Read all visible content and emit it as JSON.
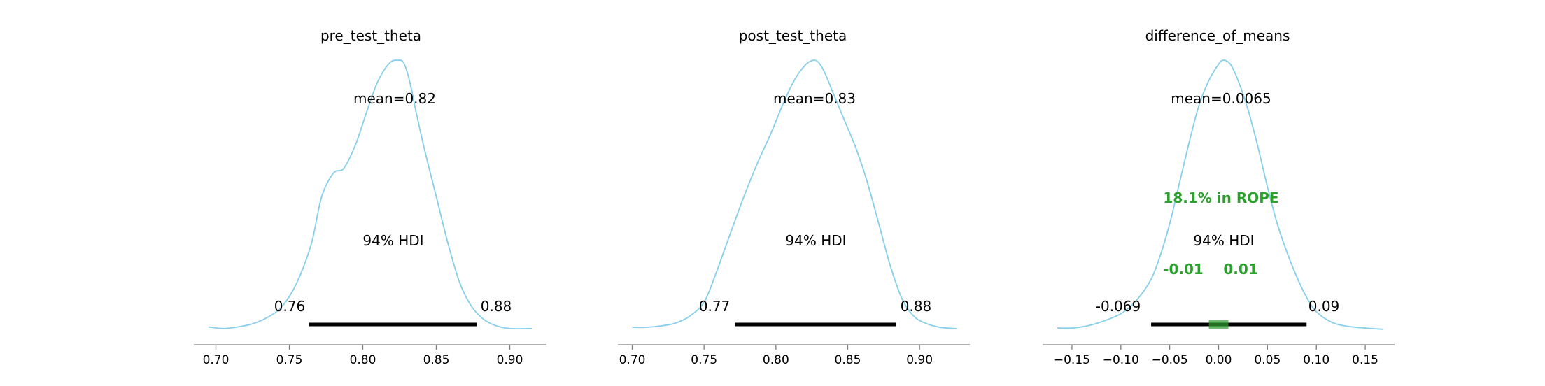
{
  "chart_data": [
    {
      "type": "line",
      "title": "pre_test_theta",
      "xlim": [
        0.685,
        0.925
      ],
      "xticks": [
        0.7,
        0.75,
        0.8,
        0.85,
        0.9
      ],
      "xtick_labels": [
        "0.70",
        "0.75",
        "0.80",
        "0.85",
        "0.90"
      ],
      "density": {
        "x": [
          0.695,
          0.705,
          0.715,
          0.725,
          0.735,
          0.745,
          0.755,
          0.765,
          0.772,
          0.78,
          0.787,
          0.795,
          0.803,
          0.81,
          0.818,
          0.824,
          0.828,
          0.832,
          0.836,
          0.842,
          0.85,
          0.858,
          0.866,
          0.874,
          0.882,
          0.89,
          0.9,
          0.915
        ],
        "y": [
          0.02,
          0.01,
          0.02,
          0.04,
          0.08,
          0.15,
          0.3,
          0.55,
          0.85,
          1.0,
          1.03,
          1.18,
          1.4,
          1.58,
          1.7,
          1.72,
          1.7,
          1.58,
          1.4,
          1.15,
          0.85,
          0.55,
          0.3,
          0.15,
          0.07,
          0.03,
          0.01,
          0.01
        ]
      },
      "mean_label": "mean=0.82",
      "mean_value": 0.82,
      "hdi_label": "94% HDI",
      "hdi": [
        0.76,
        0.88
      ],
      "hdi_x": [
        0.7635,
        0.8775
      ],
      "hdi_low_label": "0.76",
      "hdi_high_label": "0.88"
    },
    {
      "type": "line",
      "title": "post_test_theta",
      "xlim": [
        0.69,
        0.935
      ],
      "xticks": [
        0.7,
        0.75,
        0.8,
        0.85,
        0.9
      ],
      "xtick_labels": [
        "0.70",
        "0.75",
        "0.80",
        "0.85",
        "0.90"
      ],
      "density": {
        "x": [
          0.7,
          0.71,
          0.72,
          0.73,
          0.74,
          0.75,
          0.758,
          0.765,
          0.772,
          0.78,
          0.788,
          0.796,
          0.804,
          0.812,
          0.82,
          0.826,
          0.83,
          0.834,
          0.84,
          0.848,
          0.856,
          0.864,
          0.872,
          0.88,
          0.888,
          0.896,
          0.904,
          0.914,
          0.926
        ],
        "y": [
          0.02,
          0.02,
          0.03,
          0.05,
          0.1,
          0.2,
          0.4,
          0.6,
          0.8,
          1.02,
          1.22,
          1.4,
          1.6,
          1.78,
          1.9,
          1.94,
          1.92,
          1.85,
          1.7,
          1.5,
          1.3,
          1.05,
          0.75,
          0.45,
          0.22,
          0.1,
          0.05,
          0.02,
          0.01
        ]
      },
      "mean_label": "mean=0.83",
      "mean_value": 0.83,
      "hdi_label": "94% HDI",
      "hdi": [
        0.77,
        0.88
      ],
      "hdi_x": [
        0.7715,
        0.8835
      ],
      "hdi_low_label": "0.77",
      "hdi_high_label": "0.88"
    },
    {
      "type": "line",
      "title": "difference_of_means",
      "xlim": [
        -0.18,
        0.18
      ],
      "xticks": [
        -0.15,
        -0.1,
        -0.05,
        0.0,
        0.05,
        0.1,
        0.15
      ],
      "xtick_labels": [
        "−0.15",
        "−0.10",
        "−0.05",
        "0.00",
        "0.05",
        "0.10",
        "0.15"
      ],
      "density": {
        "x": [
          -0.165,
          -0.15,
          -0.135,
          -0.12,
          -0.1,
          -0.085,
          -0.07,
          -0.06,
          -0.05,
          -0.04,
          -0.03,
          -0.02,
          -0.01,
          0.0,
          0.005,
          0.012,
          0.02,
          0.03,
          0.04,
          0.05,
          0.06,
          0.07,
          0.08,
          0.09,
          0.1,
          0.115,
          0.13,
          0.15,
          0.168
        ],
        "y": [
          0.05,
          0.05,
          0.1,
          0.2,
          0.4,
          0.7,
          1.2,
          1.8,
          2.6,
          3.6,
          4.6,
          5.5,
          6.1,
          6.5,
          6.6,
          6.5,
          6.1,
          5.4,
          4.5,
          3.5,
          2.6,
          1.9,
          1.3,
          0.8,
          0.45,
          0.2,
          0.1,
          0.05,
          0.02
        ]
      },
      "mean_label": "mean=0.0065",
      "mean_value": 0.0065,
      "hdi_label": "94% HDI",
      "hdi": [
        -0.069,
        0.09
      ],
      "hdi_low_label": "-0.069",
      "hdi_high_label": "0.09",
      "rope": [
        -0.01,
        0.01
      ],
      "rope_label": "18.1% in ROPE",
      "rope_low_label": "-0.01",
      "rope_high_label": "0.01"
    }
  ],
  "colors": {
    "kde": "#87ceeb",
    "hdi": "#000000",
    "rope": "#2ca02c",
    "axis": "#808080"
  }
}
